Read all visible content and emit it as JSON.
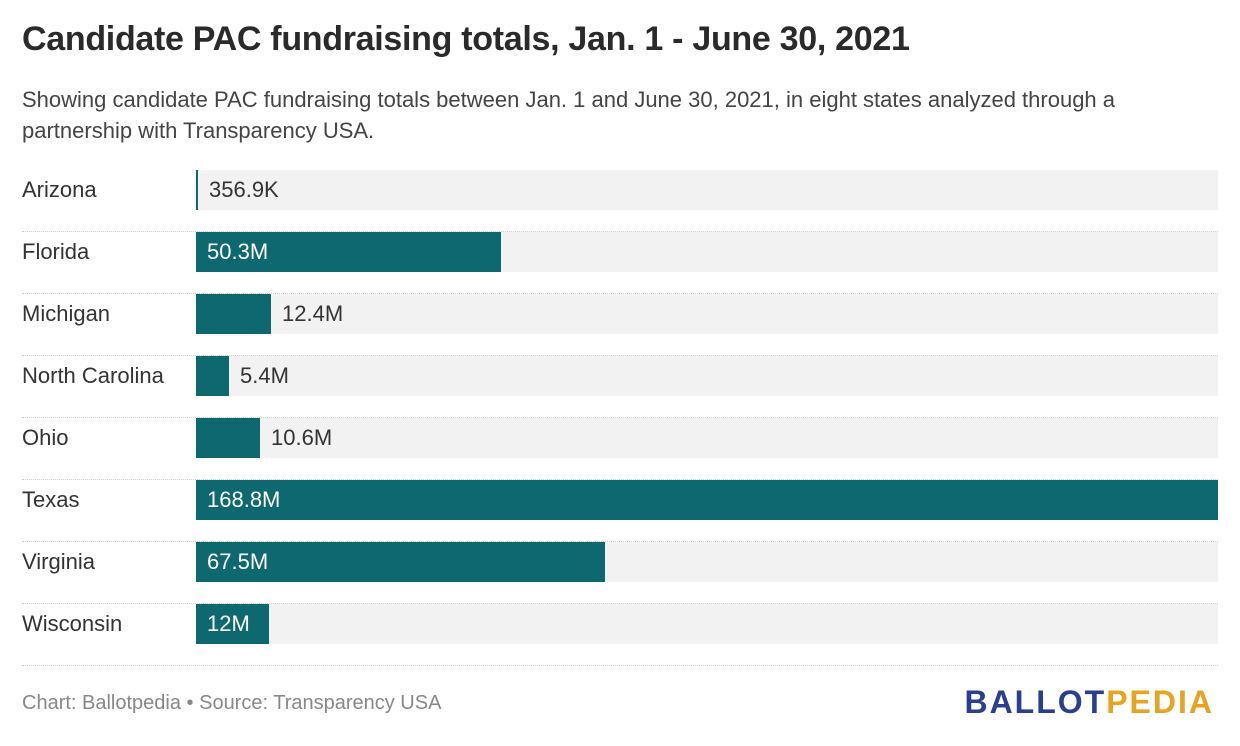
{
  "title": "Candidate PAC fundraising totals, Jan. 1 - June 30, 2021",
  "subtitle": "Showing candidate PAC fundraising totals between Jan. 1 and June 30, 2021, in eight states analyzed through a partnership with Transparency USA.",
  "footer": {
    "credit": "Chart: Ballotpedia • Source: Transparency USA",
    "logo_part1": "BALLOT",
    "logo_part2": "PEDIA"
  },
  "colors": {
    "bar": "#0e6870",
    "track": "#f2f2f2",
    "label_inside": "#ffffff",
    "label_outside": "#333333",
    "logo_primary": "#2a3f8f",
    "logo_accent": "#e8a321"
  },
  "chart_data": {
    "type": "bar",
    "orientation": "horizontal",
    "categories": [
      "Arizona",
      "Florida",
      "Michigan",
      "North Carolina",
      "Ohio",
      "Texas",
      "Virginia",
      "Wisconsin"
    ],
    "values": [
      356900,
      50300000,
      12400000,
      5400000,
      10600000,
      168800000,
      67500000,
      12000000
    ],
    "value_labels": [
      "356.9K",
      "50.3M",
      "12.4M",
      "5.4M",
      "10.6M",
      "168.8M",
      "67.5M",
      "12M"
    ],
    "xlim": [
      0,
      168800000
    ],
    "grid": false,
    "legend": "none"
  }
}
